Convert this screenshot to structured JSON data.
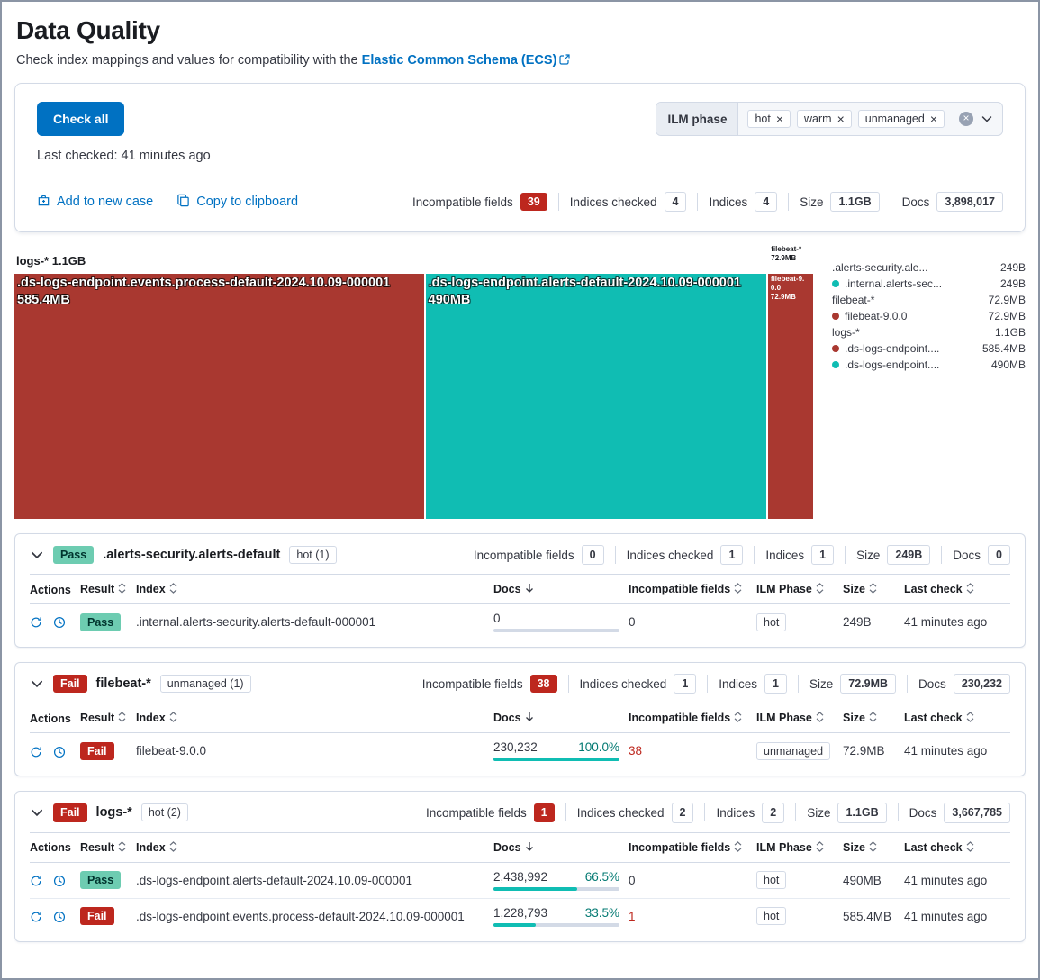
{
  "colors": {
    "danger": "#BD271E",
    "success": "#6DCCB1",
    "teal": "#10BDB3",
    "tealtext": "#007871",
    "brick": "#A93830",
    "primary": "#0071C2"
  },
  "header": {
    "title": "Data Quality",
    "subtitle": "Check index mappings and values for compatibility with the",
    "subtitle_link": "Elastic Common Schema (ECS)"
  },
  "summary": {
    "check_all": "Check all",
    "last_checked": "Last checked: 41 minutes ago",
    "ilm_label": "ILM phase",
    "ilm_pills": [
      "hot",
      "warm",
      "unmanaged"
    ],
    "add_case": "Add to new case",
    "copy_clipboard": "Copy to clipboard",
    "stats": [
      {
        "label": "Incompatible fields",
        "value": "39"
      },
      {
        "label": "Indices checked",
        "value": "4"
      },
      {
        "label": "Indices",
        "value": "4"
      },
      {
        "label": "Size",
        "value": "1.1GB"
      },
      {
        "label": "Docs",
        "value": "3,898,017"
      }
    ]
  },
  "treemap": {
    "group_label": "logs-* 1.1GB",
    "small_group_label_1": "filebeat-*",
    "small_group_label_2": "72.9MB",
    "blocks": [
      {
        "name": ".ds-logs-endpoint.events.process-default-2024.10.09-000001",
        "size": "585.4MB",
        "width": 51.2
      },
      {
        "name": ".ds-logs-endpoint.alerts-default-2024.10.09-000001",
        "size": "490MB",
        "width": 42.6
      },
      {
        "name": "filebeat-9.0.0",
        "size": "72.9MB",
        "width": 5.6
      }
    ],
    "legend": [
      {
        "label": ".alerts-security.ale...",
        "value": "249B"
      },
      {
        "label": ".internal.alerts-sec...",
        "value": "249B"
      },
      {
        "label": "filebeat-*",
        "value": "72.9MB"
      },
      {
        "label": "filebeat-9.0.0",
        "value": "72.9MB"
      },
      {
        "label": "logs-*",
        "value": "1.1GB"
      },
      {
        "label": ".ds-logs-endpoint....",
        "value": "585.4MB"
      },
      {
        "label": ".ds-logs-endpoint....",
        "value": "490MB"
      }
    ]
  },
  "table": {
    "headers": [
      "Actions",
      "Result",
      "Index",
      "Docs",
      "Incompatible fields",
      "ILM Phase",
      "Size",
      "Last check"
    ]
  },
  "panels": [
    {
      "result": "Pass",
      "title": ".alerts-security.alerts-default",
      "phase": "hot (1)",
      "stats": [
        {
          "label": "Incompatible fields",
          "value": "0"
        },
        {
          "label": "Indices checked",
          "value": "1"
        },
        {
          "label": "Indices",
          "value": "1"
        },
        {
          "label": "Size",
          "value": "249B"
        },
        {
          "label": "Docs",
          "value": "0"
        }
      ],
      "rows": [
        {
          "result": "Pass",
          "index": ".internal.alerts-security.alerts-default-000001",
          "docs": "0",
          "pct": "",
          "bar": 0,
          "incompatible": "0",
          "ilm": "hot",
          "size": "249B",
          "last_check": "41 minutes ago"
        }
      ]
    },
    {
      "result": "Fail",
      "title": "filebeat-*",
      "phase": "unmanaged (1)",
      "stats": [
        {
          "label": "Incompatible fields",
          "value": "38"
        },
        {
          "label": "Indices checked",
          "value": "1"
        },
        {
          "label": "Indices",
          "value": "1"
        },
        {
          "label": "Size",
          "value": "72.9MB"
        },
        {
          "label": "Docs",
          "value": "230,232"
        }
      ],
      "rows": [
        {
          "result": "Fail",
          "index": "filebeat-9.0.0",
          "docs": "230,232",
          "pct": "100.0%",
          "bar": 100,
          "incompatible": "38",
          "ilm": "unmanaged",
          "size": "72.9MB",
          "last_check": "41 minutes ago"
        }
      ]
    },
    {
      "result": "Fail",
      "title": "logs-*",
      "phase": "hot (2)",
      "stats": [
        {
          "label": "Incompatible fields",
          "value": "1"
        },
        {
          "label": "Indices checked",
          "value": "2"
        },
        {
          "label": "Indices",
          "value": "2"
        },
        {
          "label": "Size",
          "value": "1.1GB"
        },
        {
          "label": "Docs",
          "value": "3,667,785"
        }
      ],
      "rows": [
        {
          "result": "Pass",
          "index": ".ds-logs-endpoint.alerts-default-2024.10.09-000001",
          "docs": "2,438,992",
          "pct": "66.5%",
          "bar": 66.5,
          "incompatible": "0",
          "ilm": "hot",
          "size": "490MB",
          "last_check": "41 minutes ago"
        },
        {
          "result": "Fail",
          "index": ".ds-logs-endpoint.events.process-default-2024.10.09-000001",
          "docs": "1,228,793",
          "pct": "33.5%",
          "bar": 33.5,
          "incompatible": "1",
          "ilm": "hot",
          "size": "585.4MB",
          "last_check": "41 minutes ago"
        }
      ]
    }
  ]
}
